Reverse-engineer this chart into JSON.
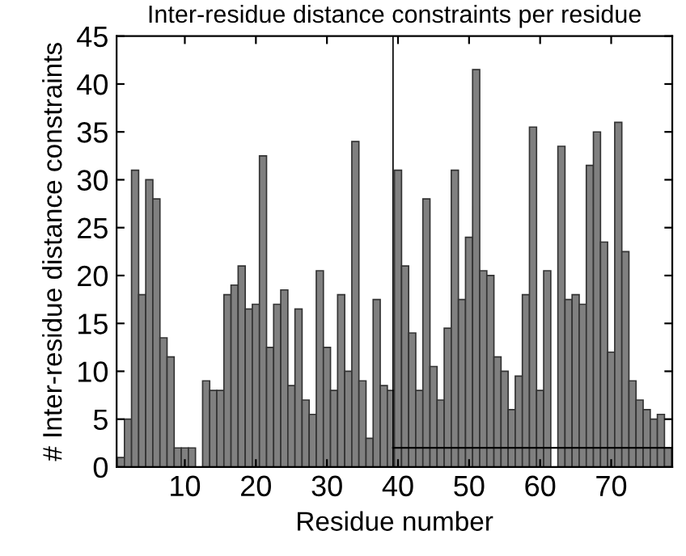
{
  "chart_data": {
    "type": "bar",
    "title": "Inter-residue distance constraints per residue",
    "xlabel": "Residue number",
    "ylabel": "# Inter-residue distance constraints",
    "x": [
      1,
      2,
      3,
      4,
      5,
      6,
      7,
      8,
      9,
      10,
      11,
      12,
      13,
      14,
      15,
      16,
      17,
      18,
      19,
      20,
      21,
      22,
      23,
      24,
      25,
      26,
      27,
      28,
      29,
      30,
      31,
      32,
      33,
      34,
      35,
      36,
      37,
      38,
      39,
      40,
      41,
      42,
      43,
      44,
      45,
      46,
      47,
      48,
      49,
      50,
      51,
      52,
      53,
      54,
      55,
      56,
      57,
      58,
      59,
      60,
      61,
      62,
      63,
      64,
      65,
      66,
      67,
      68,
      69,
      70,
      71,
      72,
      73,
      74,
      75,
      76,
      77,
      78
    ],
    "series": [
      {
        "color": "#808080",
        "values": [
          1,
          5,
          31,
          18,
          30,
          28,
          13.5,
          11.5,
          2,
          2,
          2,
          0,
          9,
          8,
          8,
          18,
          19,
          21,
          16.5,
          17,
          32.5,
          12.5,
          17,
          18.5,
          8.5,
          16.5,
          7,
          5.5,
          20.5,
          12.5,
          8,
          18,
          10,
          34,
          9,
          3,
          17.5,
          8.5,
          8,
          31,
          21,
          14,
          8,
          28,
          10.5,
          7,
          14.5,
          31,
          17.5,
          24,
          41.5,
          20.5,
          20,
          11.5,
          10,
          6,
          9.5,
          18,
          35.5,
          8,
          20.5,
          0,
          33.5,
          17.5,
          18,
          17,
          31.5,
          35,
          23.5,
          12,
          36,
          22.5,
          9,
          7,
          6,
          5,
          5.5,
          2
        ]
      },
      {
        "type": "line",
        "color": "#000000",
        "x": [
          39.3,
          78.6
        ],
        "values": [
          2,
          2
        ]
      }
    ],
    "ref_lines": [
      {
        "axis": "x",
        "value": 39.3,
        "color": "#000000"
      }
    ],
    "xlim": [
      0.4,
      78.6
    ],
    "xticks": [
      10,
      20,
      30,
      40,
      50,
      60,
      70
    ],
    "ylim": [
      0,
      45
    ],
    "yticks": [
      0,
      5,
      10,
      15,
      20,
      25,
      30,
      35,
      40,
      45
    ],
    "grid": false,
    "legend": false
  }
}
